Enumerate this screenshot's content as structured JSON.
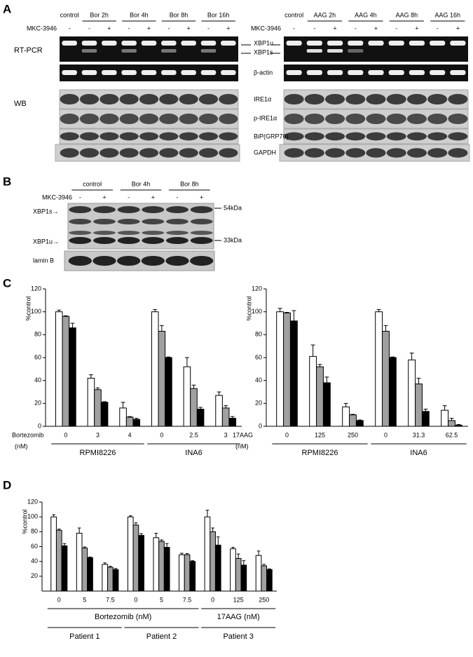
{
  "panel_a": {
    "letter": "A",
    "left_headers": [
      "control",
      "Bor 2h",
      "Bor 4h",
      "Bor 8h",
      "Bor 16h"
    ],
    "right_headers": [
      "control",
      "AAG 2h",
      "AAG 4h",
      "AAG 8h",
      "AAG 16h"
    ],
    "treatment": "MKC-3946",
    "signs": [
      "-",
      "-",
      "+",
      "-",
      "+",
      "-",
      "+",
      "-",
      "+"
    ],
    "rt_pcr": "RT-PCR",
    "wb": "WB",
    "xbp1u": "XBP1u",
    "xbp1s": "XBP1s",
    "labels": [
      "β-actin",
      "IRE1α",
      "p-IRE1α",
      "BiP(GRP78)",
      "GAPDH"
    ]
  },
  "panel_b": {
    "letter": "B",
    "headers": [
      "control",
      "Bor 4h",
      "Bor 8h"
    ],
    "treatment": "MKC-3946",
    "signs": [
      "-",
      "+",
      "-",
      "+",
      "-",
      "+"
    ],
    "labels": [
      "XBP1s→",
      "XBP1u→",
      "lamin B"
    ],
    "markers": [
      "54kDa",
      "33kDa"
    ]
  },
  "panel_c": {
    "letter": "C"
  },
  "panel_d": {
    "letter": "D"
  },
  "chart_data": [
    {
      "type": "bar",
      "ylabel": "%control",
      "xlabel": "Bortezomib",
      "xlabel_unit": "(nM)",
      "categories": [
        "0",
        "3",
        "4",
        "0",
        "2.5",
        "3"
      ],
      "groups": [
        "RPMI8226",
        "INA6"
      ],
      "ylim": [
        0,
        120
      ],
      "yticks": [
        0,
        20,
        40,
        60,
        80,
        100,
        120
      ],
      "series": [
        {
          "color": "#ffffff",
          "values": [
            100,
            42,
            16,
            100,
            52,
            27
          ],
          "errors": [
            1.5,
            3,
            5,
            2,
            8,
            3
          ]
        },
        {
          "color": "#a0a0a0",
          "values": [
            96,
            32,
            8,
            83,
            33,
            16
          ],
          "errors": [
            0.5,
            1.5,
            0.5,
            5,
            3,
            2
          ]
        },
        {
          "color": "#000000",
          "values": [
            86,
            21,
            6,
            60,
            15,
            7
          ],
          "errors": [
            4,
            0.5,
            1,
            0.5,
            1.5,
            1.5
          ]
        }
      ]
    },
    {
      "type": "bar",
      "ylabel": "%control",
      "xlabel": "17AAG",
      "xlabel_unit": "(nM)",
      "categories": [
        "0",
        "125",
        "250",
        "0",
        "31.3",
        "62.5"
      ],
      "groups": [
        "RPMI8226",
        "INA6"
      ],
      "ylim": [
        0,
        120
      ],
      "yticks": [
        0,
        20,
        40,
        60,
        80,
        100,
        120
      ],
      "series": [
        {
          "color": "#ffffff",
          "values": [
            100,
            61,
            17,
            100,
            58,
            14
          ],
          "errors": [
            3,
            10,
            3,
            2,
            6,
            4
          ]
        },
        {
          "color": "#a0a0a0",
          "values": [
            99,
            52,
            10,
            83,
            37,
            5
          ],
          "errors": [
            0.5,
            2,
            0.5,
            5,
            5,
            2
          ]
        },
        {
          "color": "#000000",
          "values": [
            92,
            38,
            5,
            60,
            13,
            1
          ],
          "errors": [
            9,
            5,
            0.5,
            0.5,
            2,
            0.5
          ]
        }
      ]
    },
    {
      "type": "bar",
      "ylabel": "%control",
      "categories": [
        "0",
        "5",
        "7.5",
        "0",
        "5",
        "7.5",
        "0",
        "125",
        "250"
      ],
      "groups": [
        "Patient 1",
        "Patient 2",
        "Patient 3"
      ],
      "drug_groups": [
        "Bortezomib (nM)",
        "17AAG (nM)"
      ],
      "ylim": [
        0,
        120
      ],
      "yticks": [
        20,
        40,
        60,
        80,
        100,
        120
      ],
      "series": [
        {
          "color": "#ffffff",
          "values": [
            100,
            78,
            36,
            100,
            72,
            49,
            100,
            57,
            48
          ],
          "errors": [
            3,
            7,
            2,
            1.5,
            6,
            2,
            9,
            2,
            6
          ]
        },
        {
          "color": "#a0a0a0",
          "values": [
            82,
            58,
            32,
            89,
            67,
            49,
            80,
            44,
            34
          ],
          "errors": [
            1.5,
            1.5,
            1.5,
            3,
            2,
            1.5,
            5,
            6,
            2
          ]
        },
        {
          "color": "#000000",
          "values": [
            61,
            45,
            29,
            75,
            59,
            40,
            62,
            35,
            29
          ],
          "errors": [
            3,
            1,
            1.5,
            2.5,
            5,
            1,
            11,
            6,
            1
          ]
        }
      ]
    }
  ]
}
